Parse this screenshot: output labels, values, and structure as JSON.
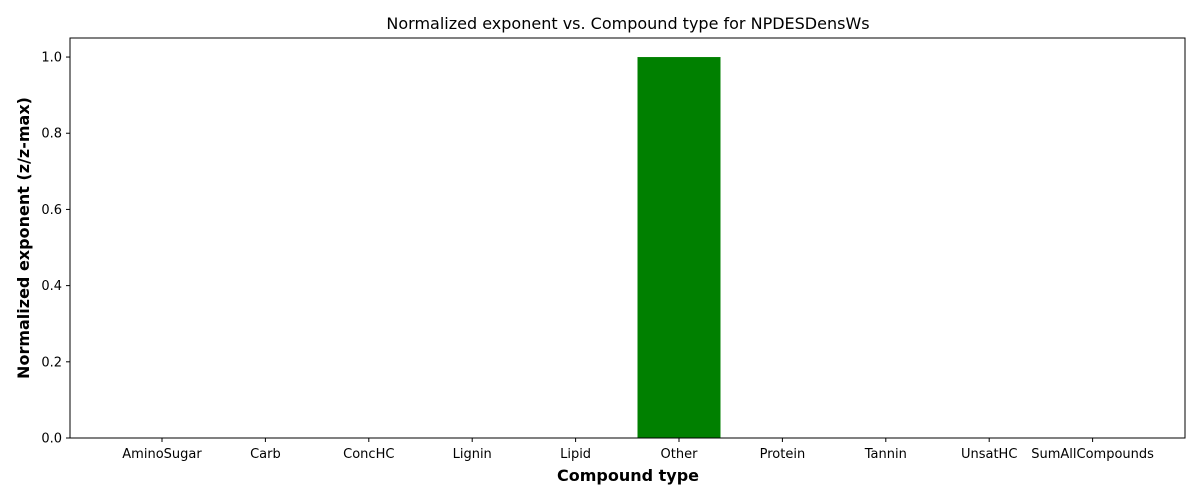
{
  "chart_data": {
    "type": "bar",
    "title": "Normalized exponent vs. Compound type for NPDESDensWs",
    "xlabel": "Compound type",
    "ylabel": "Normalized exponent (z/z-max)",
    "categories": [
      "AminoSugar",
      "Carb",
      "ConcHC",
      "Lignin",
      "Lipid",
      "Other",
      "Protein",
      "Tannin",
      "UnsatHC",
      "SumAllCompounds"
    ],
    "values": [
      0,
      0,
      0,
      0,
      0,
      1.0,
      0,
      0,
      0,
      0
    ],
    "ylim": [
      0,
      1.05
    ],
    "yticks": [
      0.0,
      0.2,
      0.4,
      0.6,
      0.8,
      1.0
    ],
    "ytick_labels": [
      "0.0",
      "0.2",
      "0.4",
      "0.6",
      "0.8",
      "1.0"
    ],
    "bar_color": "#008000",
    "grid": false,
    "legend": false
  }
}
